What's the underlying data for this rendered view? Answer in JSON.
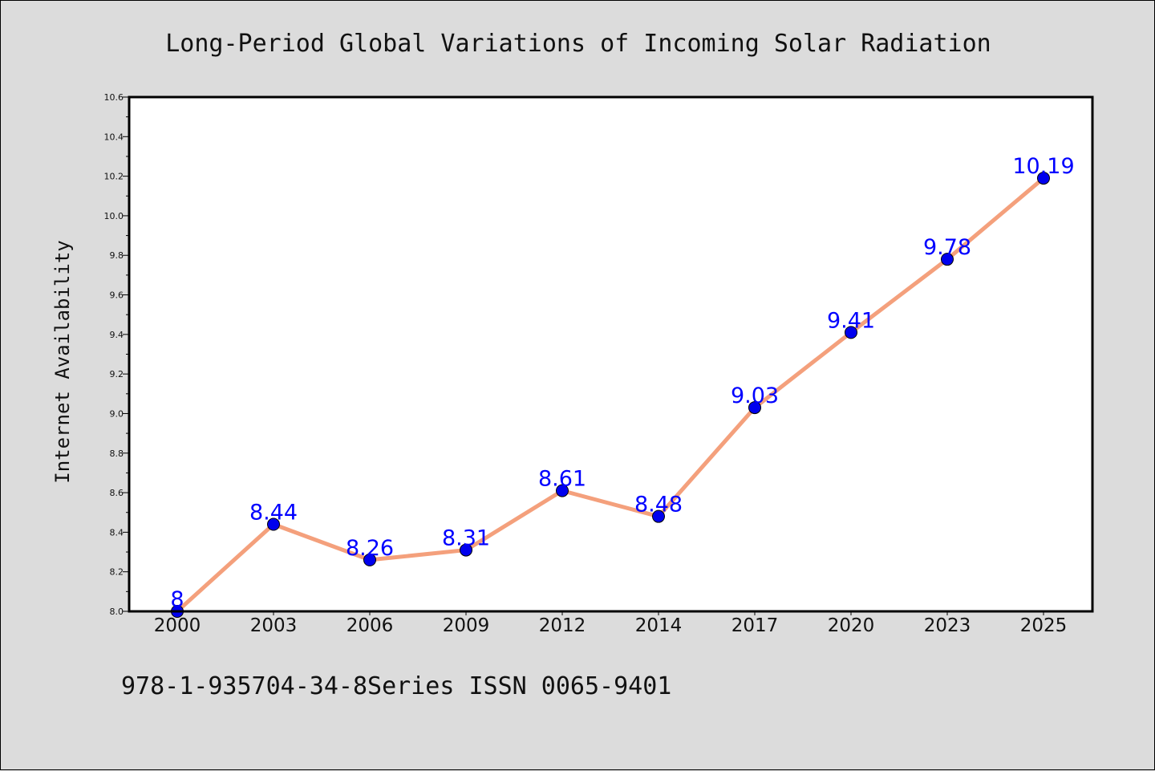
{
  "chart_data": {
    "type": "line",
    "title": "Long-Period Global Variations of Incoming Solar Radiation",
    "xlabel": "",
    "ylabel": "Internet Availability",
    "categories": [
      "2000",
      "2003",
      "2006",
      "2009",
      "2012",
      "2014",
      "2017",
      "2020",
      "2023",
      "2025"
    ],
    "series": [
      {
        "values": [
          8.0,
          8.44,
          8.26,
          8.31,
          8.61,
          8.48,
          9.03,
          9.41,
          9.78,
          10.19
        ],
        "data_labels": [
          "8",
          "8.44",
          "8.26",
          "8.31",
          "8.61",
          "8.48",
          "9.03",
          "9.41",
          "9.78",
          "10.19"
        ],
        "line_color": "#f4a07c",
        "marker_color": "#0000ee",
        "label_color": "#0000ff"
      }
    ],
    "ylim": [
      8.0,
      10.6
    ],
    "yticks": [
      "8.0",
      "8.2",
      "8.4",
      "8.6",
      "8.8",
      "9.0",
      "9.2",
      "9.4",
      "9.6",
      "9.8",
      "10.0",
      "10.2",
      "10.4",
      "10.6"
    ],
    "grid": false,
    "legend": "none"
  },
  "footer": {
    "text": "978-1-935704-34-8Series ISSN 0065-9401"
  },
  "colors": {
    "background": "#dcdcdc",
    "plot_background": "#ffffff",
    "line": "#f4a07c",
    "marker": "#0000ee",
    "data_label": "#0000ff"
  }
}
